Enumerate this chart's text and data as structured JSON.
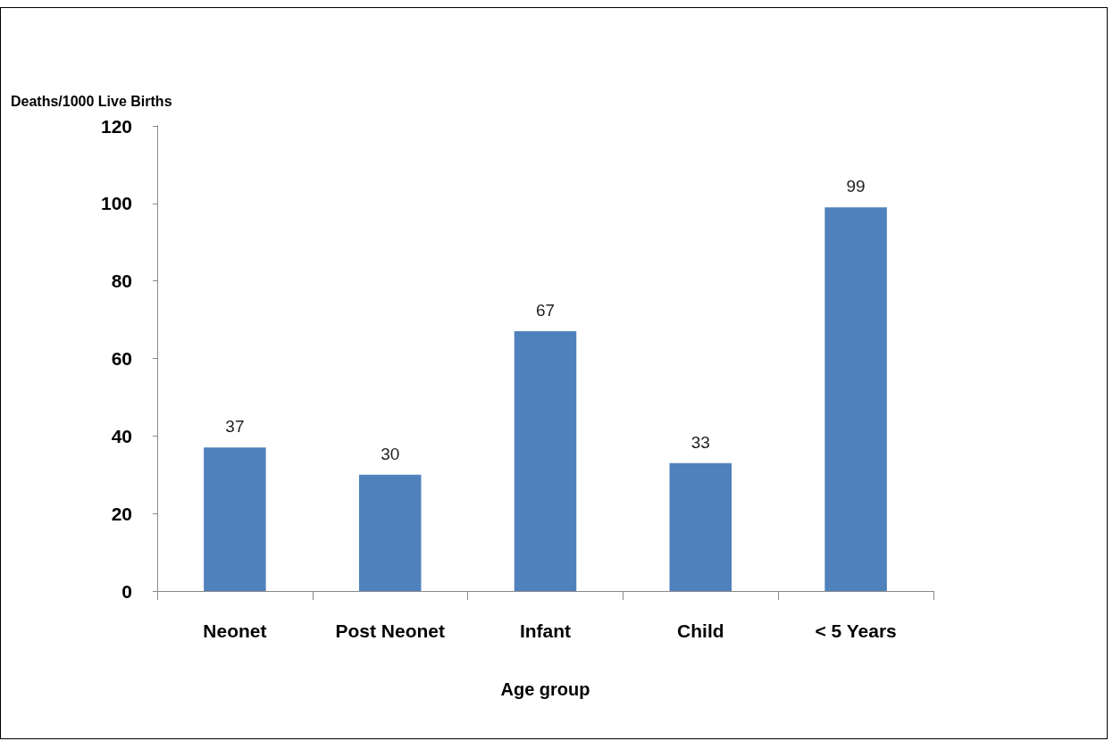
{
  "chart_data": {
    "type": "bar",
    "ylabel": "Deaths/1000 Live Births",
    "xlabel": "Age group",
    "categories": [
      "Neonet",
      "Post Neonet",
      "Infant",
      "Child",
      "< 5 Years"
    ],
    "values": [
      37,
      30,
      67,
      33,
      99
    ],
    "color": "#4f81bd",
    "ylim": [
      0,
      120
    ],
    "yticks": [
      0,
      20,
      40,
      60,
      80,
      100,
      120
    ],
    "data_labels": true,
    "grid": false
  }
}
